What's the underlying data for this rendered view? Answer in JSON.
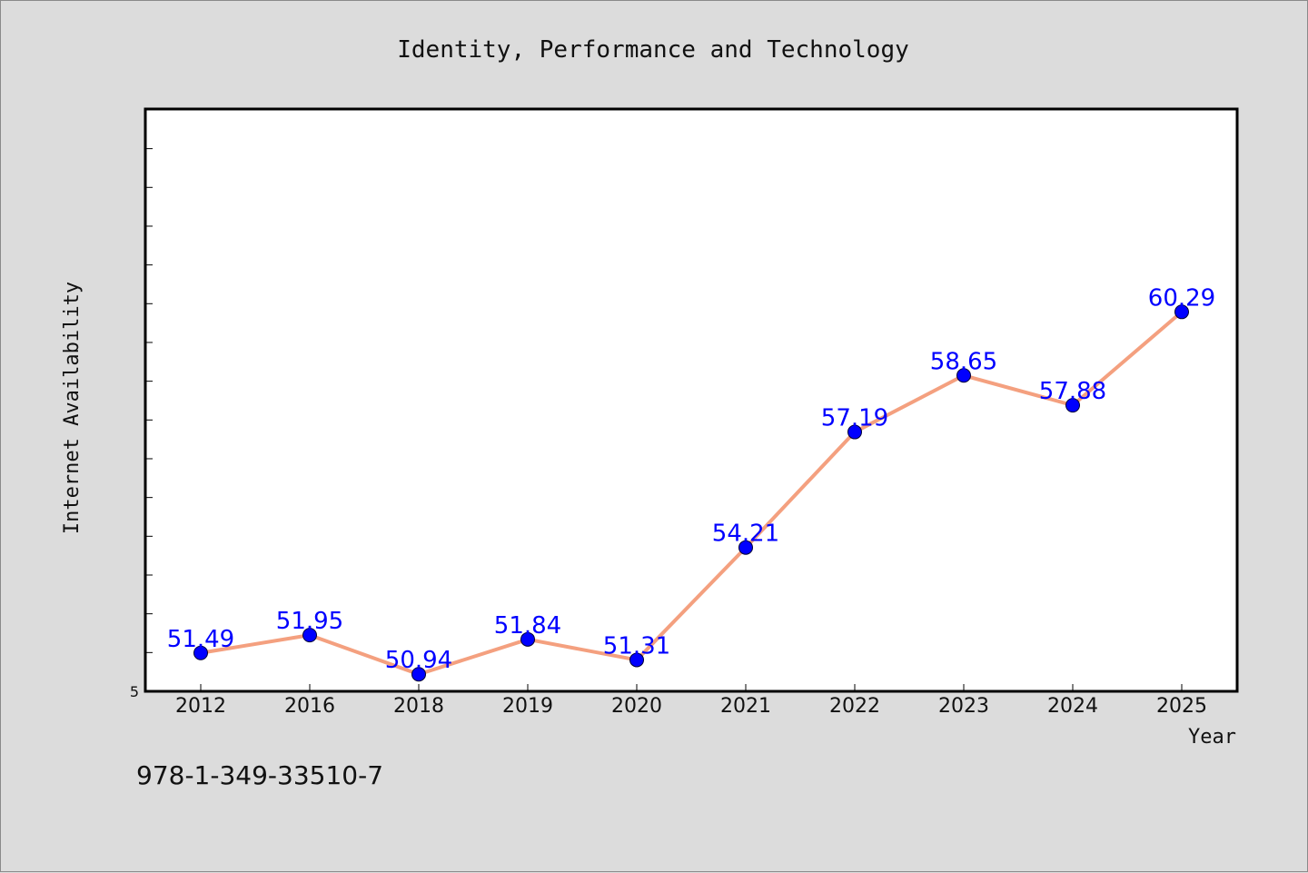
{
  "chart_data": {
    "type": "line",
    "title": "Identity, Performance and Technology",
    "xlabel": "Year",
    "ylabel": "Internet Availability",
    "categories": [
      "2012",
      "2016",
      "2018",
      "2019",
      "2020",
      "2021",
      "2022",
      "2023",
      "2024",
      "2025"
    ],
    "series": [
      {
        "values": [
          51.49,
          51.95,
          50.94,
          51.84,
          51.31,
          54.21,
          57.19,
          58.65,
          57.88,
          60.29
        ],
        "line_color": "#f4a07f",
        "marker_color": "#0000ff"
      }
    ],
    "data_labels": [
      "51.49",
      "51.95",
      "50.94",
      "51.84",
      "51.31",
      "54.21",
      "57.19",
      "58.65",
      "57.88",
      "60.29"
    ],
    "ylim": [
      50.5,
      65.5
    ],
    "ytick_labels": [
      "5"
    ],
    "grid": false,
    "legend": "none"
  },
  "footer": {
    "isbn": "978-1-349-33510-7"
  }
}
